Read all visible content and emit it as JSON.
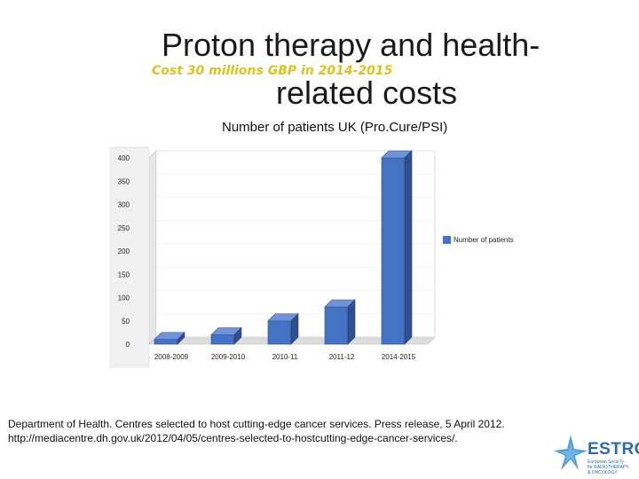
{
  "slide": {
    "title_line1": "Proton therapy and health-",
    "title_line2": "related costs",
    "subtitle": "Cost 30 millions GBP in 2014-2015",
    "reference": "Department of Health. Centres selected to host cutting-edge cancer services. Press release, 5 April 2012. http://mediacentre.dh.gov.uk/2012/04/05/centres-selected-to-hostcutting-edge-cancer-services/."
  },
  "logo": {
    "name": "ESTRO",
    "line1": "European SocieTy",
    "line2": "for RADIOTHERAPY",
    "line3": "& ONCOLOGY"
  },
  "colors": {
    "bar": "#4472c4",
    "bar_top": "#6f93d6",
    "bar_side": "#2f4f8f",
    "subtitle": "#e0c020"
  },
  "chart_data": {
    "type": "bar",
    "title": "Number of patients UK (Pro.Cure/PSI)",
    "categories": [
      "2008-2009",
      "2009-2010",
      "2010-11",
      "2011-12",
      "2014-2015"
    ],
    "series": [
      {
        "name": "Number of patients",
        "values": [
          10,
          20,
          50,
          80,
          400
        ]
      }
    ],
    "ylim": [
      0,
      400
    ],
    "yticks": [
      0,
      50,
      100,
      150,
      200,
      250,
      300,
      350,
      400
    ],
    "xlabel": "",
    "ylabel": "",
    "legend": "right",
    "style": "3d"
  }
}
